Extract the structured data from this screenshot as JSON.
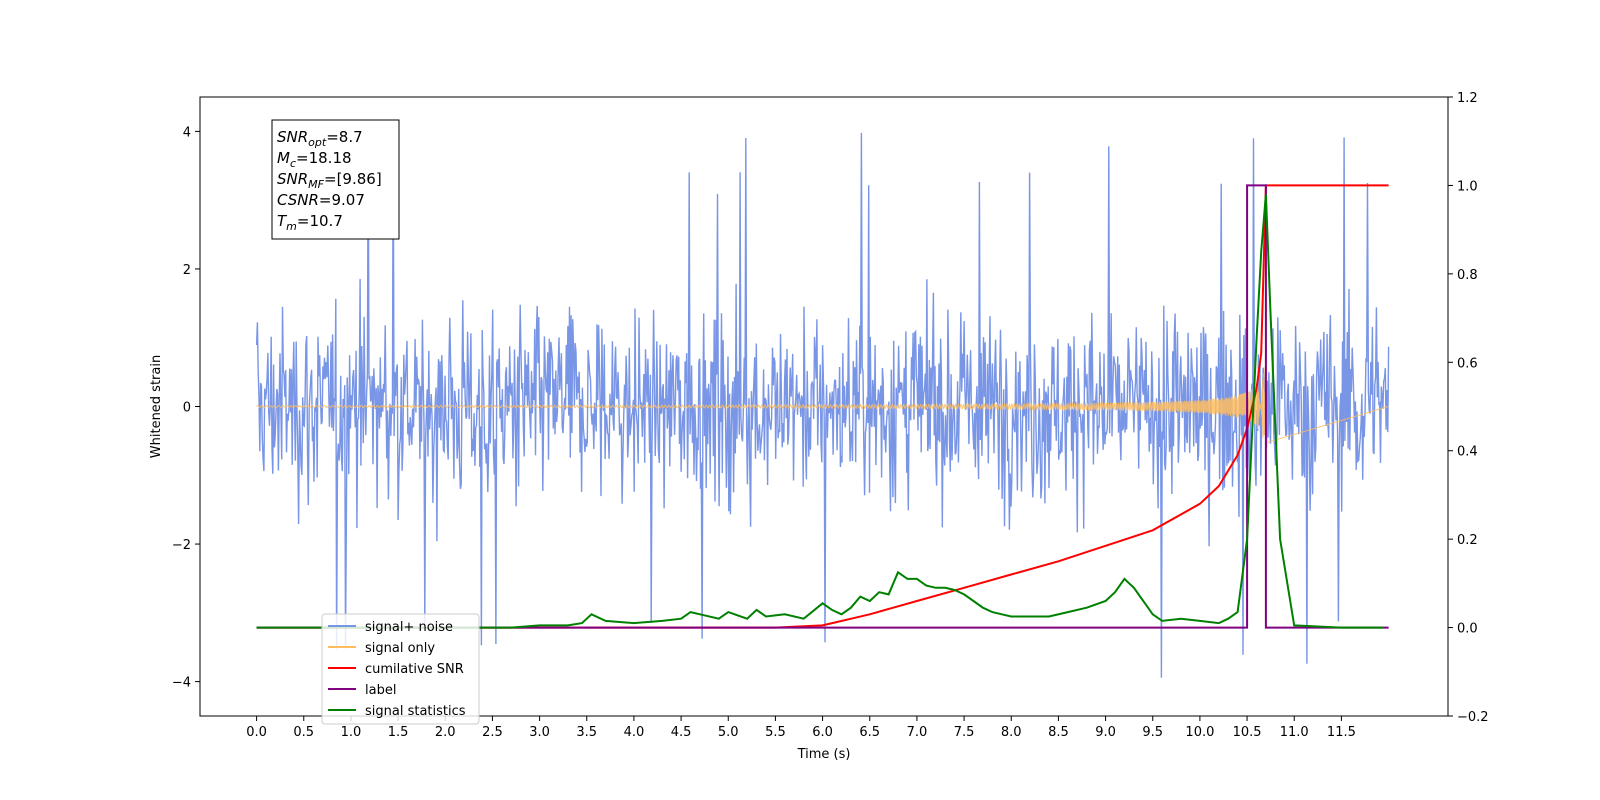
{
  "chart_data": {
    "type": "line",
    "xlabel": "Time (s)",
    "ylabel": "Whitened strain",
    "xlim": [
      -0.6,
      12.63
    ],
    "ylim": [
      -4.5,
      4.5
    ],
    "y2lim": [
      -0.2,
      1.2
    ],
    "x_ticks": [
      0.0,
      0.5,
      1.0,
      1.5,
      2.0,
      2.5,
      3.0,
      3.5,
      4.0,
      4.5,
      5.0,
      5.5,
      6.0,
      6.5,
      7.0,
      7.5,
      8.0,
      8.5,
      9.0,
      9.5,
      10.0,
      10.5,
      11.0,
      11.5
    ],
    "x_tick_labels": [
      "0.0",
      "0.5",
      "1.0",
      "1.5",
      "2.0",
      "2.5",
      "3.0",
      "3.5",
      "4.0",
      "4.5",
      "5.0",
      "5.5",
      "6.0",
      "6.5",
      "7.0",
      "7.5",
      "8.0",
      "8.5",
      "9.0",
      "9.5",
      "10.0",
      "10.5",
      "11.0",
      "11.5"
    ],
    "y_ticks": [
      -4,
      -2,
      0,
      2,
      4
    ],
    "y_tick_labels": [
      "−4",
      "−2",
      "0",
      "2",
      "4"
    ],
    "y2_ticks": [
      -0.2,
      0.0,
      0.2,
      0.4,
      0.6,
      0.8,
      1.0,
      1.2
    ],
    "y2_tick_labels": [
      "−0.2",
      "0.0",
      "0.2",
      "0.4",
      "0.6",
      "0.8",
      "1.0",
      "1.2"
    ],
    "grid": false,
    "legend_position": "lower-left",
    "annotation_box": [
      {
        "sym": "SNR",
        "sub": "opt",
        "val": "=8.7"
      },
      {
        "sym": "M",
        "sub": "c",
        "val": "=18.18"
      },
      {
        "sym": "SNR",
        "sub": "MF",
        "val": "=[9.86]"
      },
      {
        "sym": "CSNR",
        "sub": "",
        "val": "=9.07"
      },
      {
        "sym": "T",
        "sub": "m",
        "val": "=10.7"
      }
    ],
    "series": [
      {
        "name": "signal+ noise",
        "axis": "left",
        "color": "#7895e6",
        "kind": "noise",
        "x_range": [
          0.0,
          12.0
        ],
        "sample_count": 1400,
        "typical_range": [
          -2.5,
          2.5
        ],
        "extremes": [
          -4.1,
          4.15
        ]
      },
      {
        "name": "signal only",
        "axis": "left",
        "color": "#ffbd5e",
        "kind": "chirp",
        "x_range": [
          0.0,
          10.7
        ],
        "peak_amplitude": 0.65
      },
      {
        "name": "cumilative SNR",
        "axis": "right",
        "color": "#ff0000",
        "x": [
          0.0,
          5.5,
          6.0,
          6.5,
          7.0,
          7.5,
          8.0,
          8.5,
          9.0,
          9.5,
          10.0,
          10.2,
          10.4,
          10.5,
          10.6,
          10.65,
          10.7,
          11.0,
          12.0
        ],
        "y": [
          0.0,
          0.0,
          0.005,
          0.03,
          0.06,
          0.09,
          0.12,
          0.15,
          0.185,
          0.22,
          0.28,
          0.32,
          0.39,
          0.45,
          0.54,
          0.62,
          1.0,
          1.0,
          1.0
        ]
      },
      {
        "name": "label",
        "axis": "right",
        "color": "#800080",
        "x": [
          0.0,
          10.5,
          10.5,
          10.7,
          10.7,
          12.0
        ],
        "y": [
          0.0,
          0.0,
          1.0,
          1.0,
          0.0,
          0.0
        ]
      },
      {
        "name": "signal statistics",
        "axis": "right",
        "color": "#008000",
        "x": [
          0.0,
          2.7,
          3.0,
          3.3,
          3.45,
          3.55,
          3.7,
          4.0,
          4.3,
          4.5,
          4.6,
          4.7,
          4.9,
          5.0,
          5.2,
          5.3,
          5.4,
          5.6,
          5.8,
          6.0,
          6.1,
          6.2,
          6.3,
          6.4,
          6.5,
          6.6,
          6.7,
          6.8,
          6.9,
          7.0,
          7.1,
          7.2,
          7.3,
          7.4,
          7.5,
          7.6,
          7.7,
          7.8,
          7.9,
          8.0,
          8.2,
          8.4,
          8.6,
          8.8,
          9.0,
          9.1,
          9.2,
          9.3,
          9.4,
          9.5,
          9.6,
          9.8,
          10.0,
          10.2,
          10.3,
          10.4,
          10.5,
          10.6,
          10.65,
          10.7,
          10.75,
          10.85,
          11.0,
          11.5,
          11.95
        ],
        "y": [
          0.0,
          0.0,
          0.005,
          0.005,
          0.01,
          0.03,
          0.015,
          0.01,
          0.015,
          0.02,
          0.035,
          0.03,
          0.02,
          0.035,
          0.02,
          0.04,
          0.025,
          0.03,
          0.02,
          0.055,
          0.04,
          0.03,
          0.045,
          0.07,
          0.06,
          0.08,
          0.075,
          0.125,
          0.11,
          0.11,
          0.095,
          0.09,
          0.09,
          0.085,
          0.075,
          0.06,
          0.045,
          0.035,
          0.03,
          0.025,
          0.025,
          0.025,
          0.035,
          0.045,
          0.06,
          0.08,
          0.11,
          0.09,
          0.06,
          0.03,
          0.015,
          0.02,
          0.015,
          0.01,
          0.02,
          0.035,
          0.2,
          0.65,
          0.85,
          0.98,
          0.7,
          0.2,
          0.005,
          0.0,
          0.0
        ]
      }
    ]
  }
}
